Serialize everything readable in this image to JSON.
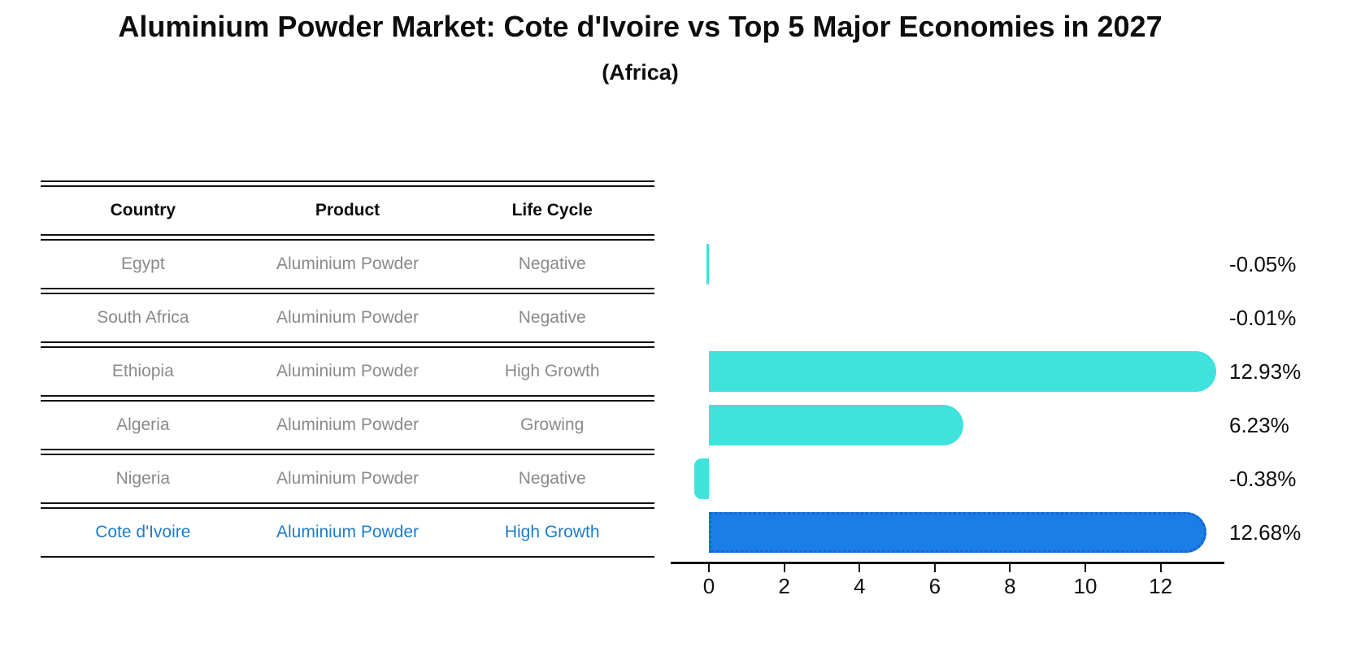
{
  "title": "Aluminium Powder Market: Cote d'Ivoire vs Top 5 Major Economies in 2027",
  "subtitle": "(Africa)",
  "table": {
    "headers": [
      "Country",
      "Product",
      "Life Cycle"
    ],
    "rows": [
      {
        "country": "Egypt",
        "product": "Aluminium Powder",
        "life_cycle": "Negative",
        "highlighted": false
      },
      {
        "country": "South Africa",
        "product": "Aluminium Powder",
        "life_cycle": "Negative",
        "highlighted": false
      },
      {
        "country": "Ethiopia",
        "product": "Aluminium Powder",
        "life_cycle": "High Growth",
        "highlighted": false
      },
      {
        "country": "Algeria",
        "product": "Aluminium Powder",
        "life_cycle": "Growing",
        "highlighted": false
      },
      {
        "country": "Nigeria",
        "product": "Aluminium Powder",
        "life_cycle": "Negative",
        "highlighted": false
      },
      {
        "country": "Cote d'Ivoire",
        "product": "Aluminium Powder",
        "life_cycle": "High Growth",
        "highlighted": true
      }
    ]
  },
  "chart_data": {
    "type": "bar",
    "orientation": "horizontal",
    "title": "Aluminium Powder Market: Cote d'Ivoire vs Top 5 Major Economies in 2027 (Africa)",
    "categories": [
      "Egypt",
      "South Africa",
      "Ethiopia",
      "Algeria",
      "Nigeria",
      "Cote d'Ivoire"
    ],
    "values": [
      -0.05,
      -0.01,
      12.93,
      6.23,
      -0.38,
      12.68
    ],
    "value_labels": [
      "-0.05%",
      "-0.01%",
      "12.93%",
      "6.23%",
      "-0.38%",
      "12.68%"
    ],
    "x_ticks": [
      0,
      2,
      4,
      6,
      8,
      10,
      12
    ],
    "xlim": [
      -1,
      13.7
    ],
    "grid": false,
    "legend": "none",
    "bar_color": "#40e2dc",
    "highlight_bar_color": "#1a7de8",
    "highlight_index": 5,
    "highlight_border_style": "dotted"
  },
  "colors": {
    "accent_cyan": "#40e2dc",
    "accent_blue": "#1a7de8",
    "highlight_text": "#1e7ccb",
    "muted_text": "#8a8a8a",
    "text": "#0d0d0d"
  }
}
